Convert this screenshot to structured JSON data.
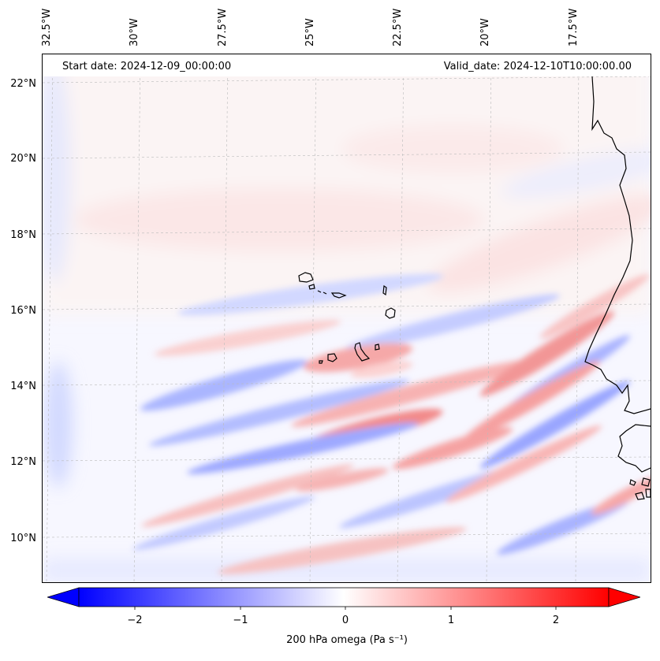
{
  "map": {
    "title_left": "Start date: 2024-12-09_00:00:00",
    "title_right": "Valid_date: 2024-12-10T10:00:00.00",
    "extent": {
      "lon_min": -33.0,
      "lon_max": -16.0,
      "lat_min": 9.0,
      "lat_max": 22.8
    },
    "lon_ticks": [
      {
        "value": -32.5,
        "label": "32.5°W"
      },
      {
        "value": -30.0,
        "label": "30°W"
      },
      {
        "value": -27.5,
        "label": "27.5°W"
      },
      {
        "value": -25.0,
        "label": "25°W"
      },
      {
        "value": -22.5,
        "label": "22.5°W"
      },
      {
        "value": -20.0,
        "label": "20°W"
      },
      {
        "value": -17.5,
        "label": "17.5°W"
      }
    ],
    "lat_ticks": [
      {
        "value": 22,
        "label": "22°N"
      },
      {
        "value": 20,
        "label": "20°N"
      },
      {
        "value": 18,
        "label": "18°N"
      },
      {
        "value": 16,
        "label": "16°N"
      },
      {
        "value": 14,
        "label": "14°N"
      },
      {
        "value": 12,
        "label": "12°N"
      },
      {
        "value": 10,
        "label": "10°N"
      }
    ],
    "colors": {
      "negative": "#0000ff",
      "positive": "#ff0000",
      "neutral": "#ffffff",
      "coast": "#000000",
      "grid": "#bbbbbb"
    }
  },
  "colorbar": {
    "label": "200 hPa omega (Pa s⁻¹)",
    "min": -2.5,
    "max": 2.5,
    "ticks": [
      {
        "value": -2,
        "label": "−2"
      },
      {
        "value": -1,
        "label": "−1"
      },
      {
        "value": 0,
        "label": "0"
      },
      {
        "value": 1,
        "label": "1"
      },
      {
        "value": 2,
        "label": "2"
      }
    ]
  }
}
